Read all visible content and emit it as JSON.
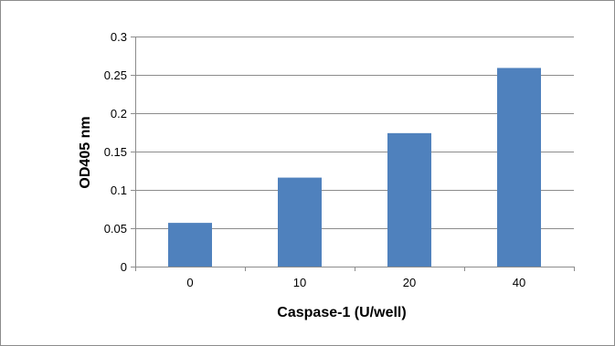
{
  "chart_data": {
    "type": "bar",
    "title": "",
    "xlabel": "Caspase-1 (U/well)",
    "ylabel": "OD405 nm",
    "categories": [
      "0",
      "10",
      "20",
      "40"
    ],
    "series": [
      {
        "values": [
          0.057,
          0.116,
          0.174,
          0.259
        ],
        "color": "#4f81bd"
      }
    ],
    "ylim": [
      0,
      0.3
    ],
    "yticks": [
      0,
      0.05,
      0.1,
      0.15,
      0.2,
      0.25,
      0.3
    ],
    "ytick_labels": [
      "0",
      "0.05",
      "0.1",
      "0.15",
      "0.2",
      "0.25",
      "0.3"
    ],
    "grid": true,
    "legend": "none"
  }
}
